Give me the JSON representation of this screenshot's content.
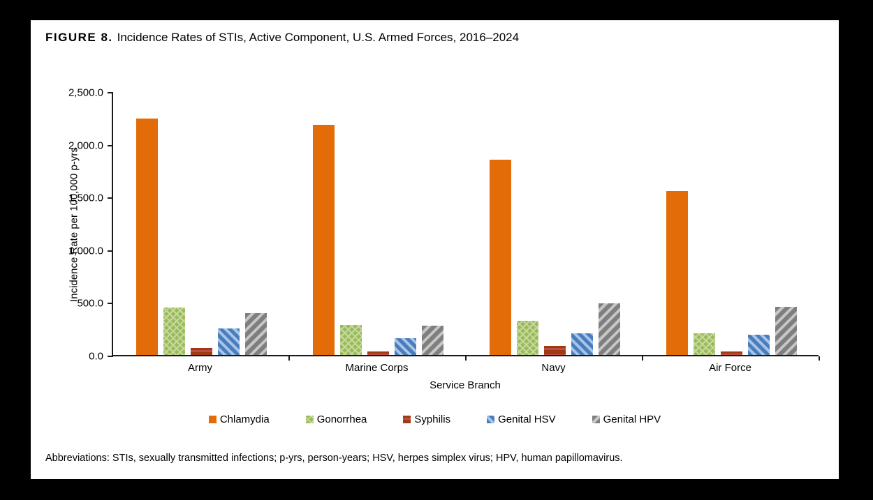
{
  "figure": {
    "label": "FIGURE 8.",
    "title": "Incidence Rates of STIs, Active Component, U.S. Armed Forces, 2016–2024"
  },
  "chart_data": {
    "type": "bar",
    "title": "Incidence Rates of STIs, Active Component, U.S. Armed Forces, 2016–2024",
    "xlabel": "Service Branch",
    "ylabel": "Incidence Rate per 100,000 p-yrs",
    "ylim": [
      0,
      2500
    ],
    "ytick_step": 500,
    "ytick_labels": [
      "0.0",
      "500.0",
      "1,000.0",
      "1,500.0",
      "2,000.0",
      "2,500.0"
    ],
    "grid": false,
    "legend_position": "bottom",
    "categories": [
      "Army",
      "Marine Corps",
      "Navy",
      "Air Force"
    ],
    "series": [
      {
        "name": "Chlamydia",
        "color": "#E36C09",
        "pattern": "solid",
        "pattern_color": "#E36C09",
        "values": [
          2245,
          2185,
          1850,
          1555
        ]
      },
      {
        "name": "Gonorrhea",
        "color": "#9BBB59",
        "pattern": "lattice",
        "pattern_color": "#C6D9A0",
        "values": [
          450,
          285,
          325,
          205
        ]
      },
      {
        "name": "Syphilis",
        "color": "#9E3B10",
        "pattern": "hstripe",
        "pattern_color": "#BE4B48",
        "values": [
          65,
          35,
          85,
          35
        ]
      },
      {
        "name": "Genital HSV",
        "color": "#4A7EBB",
        "pattern": "diag-down",
        "pattern_color": "#A9C4E9",
        "values": [
          250,
          160,
          205,
          190
        ]
      },
      {
        "name": "Genital HPV",
        "color": "#7F7F7F",
        "pattern": "diag-up",
        "pattern_color": "#C6C6C6",
        "values": [
          400,
          275,
          490,
          455
        ]
      }
    ]
  },
  "footnote": "Abbreviations: STIs, sexually transmitted infections; p-yrs, person-years; HSV, herpes simplex virus; HPV, human papillomavirus."
}
